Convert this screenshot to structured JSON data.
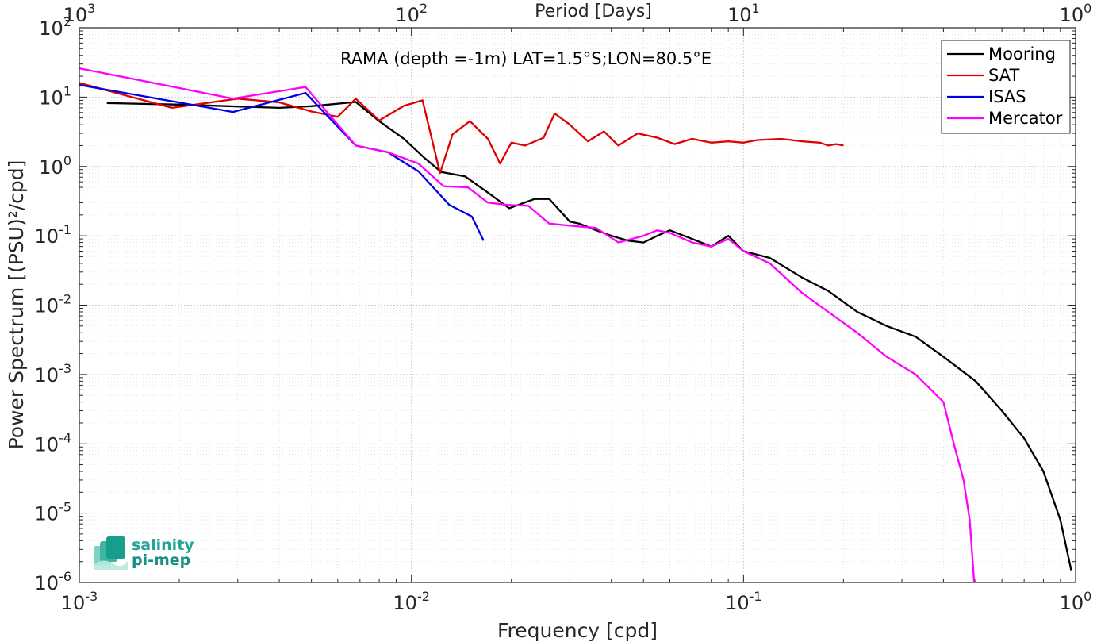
{
  "chart_data": {
    "type": "line",
    "title": "RAMA (depth =-1m) LAT=1.5°S;LON=80.5°E",
    "xlabel": "Frequency [cpd]",
    "ylabel": "Power Spectrum [(PSU)²/cpd]",
    "x2label": "Period [Days]",
    "xscale": "log",
    "yscale": "log",
    "xlim": [
      0.001,
      1
    ],
    "ylim": [
      1e-06,
      100
    ],
    "grid": true,
    "legend_position": "top-right",
    "x_ticks": [
      {
        "base": "10",
        "exp": "-3"
      },
      {
        "base": "10",
        "exp": "-2"
      },
      {
        "base": "10",
        "exp": "-1"
      },
      {
        "base": "10",
        "exp": "0"
      }
    ],
    "x2_ticks": [
      {
        "base": "10",
        "exp": "3"
      },
      {
        "base": "10",
        "exp": "2"
      },
      {
        "base": "10",
        "exp": "1"
      },
      {
        "base": "10",
        "exp": "0"
      }
    ],
    "y_ticks": [
      {
        "base": "10",
        "exp": "2"
      },
      {
        "base": "10",
        "exp": "1"
      },
      {
        "base": "10",
        "exp": "0"
      },
      {
        "base": "10",
        "exp": "-1"
      },
      {
        "base": "10",
        "exp": "-2"
      },
      {
        "base": "10",
        "exp": "-3"
      },
      {
        "base": "10",
        "exp": "-4"
      },
      {
        "base": "10",
        "exp": "-5"
      },
      {
        "base": "10",
        "exp": "-6"
      }
    ],
    "series": [
      {
        "name": "Mooring",
        "color": "#000000",
        "x": [
          0.00121,
          0.002,
          0.004,
          0.005,
          0.0068,
          0.008,
          0.0095,
          0.011,
          0.0123,
          0.0145,
          0.017,
          0.0197,
          0.0235,
          0.026,
          0.03,
          0.032,
          0.036,
          0.04,
          0.045,
          0.05,
          0.055,
          0.06,
          0.07,
          0.08,
          0.09,
          0.1,
          0.12,
          0.15,
          0.18,
          0.22,
          0.27,
          0.33,
          0.4,
          0.5,
          0.6,
          0.7,
          0.8,
          0.9,
          0.97
        ],
        "y": [
          8.2,
          7.8,
          7.0,
          7.4,
          8.5,
          4.5,
          2.5,
          1.3,
          0.83,
          0.72,
          0.42,
          0.25,
          0.34,
          0.34,
          0.16,
          0.15,
          0.12,
          0.1,
          0.085,
          0.08,
          0.1,
          0.12,
          0.09,
          0.07,
          0.1,
          0.06,
          0.048,
          0.025,
          0.016,
          0.008,
          0.005,
          0.0035,
          0.0018,
          0.0008,
          0.0003,
          0.00012,
          4e-05,
          8e-06,
          1.5e-06
        ]
      },
      {
        "name": "SAT",
        "color": "#e00000",
        "x": [
          0.001,
          0.0019,
          0.003,
          0.004,
          0.005,
          0.006,
          0.0068,
          0.008,
          0.0095,
          0.0108,
          0.0122,
          0.0133,
          0.015,
          0.017,
          0.0185,
          0.02,
          0.022,
          0.025,
          0.027,
          0.03,
          0.034,
          0.038,
          0.042,
          0.048,
          0.055,
          0.062,
          0.07,
          0.08,
          0.09,
          0.1,
          0.11,
          0.13,
          0.15,
          0.17,
          0.18,
          0.19,
          0.2
        ],
        "y": [
          16,
          7,
          9.5,
          8.4,
          6.2,
          5.2,
          9.5,
          4.6,
          7.5,
          9.0,
          0.8,
          2.9,
          4.5,
          2.5,
          1.1,
          2.2,
          2.0,
          2.6,
          5.8,
          4.0,
          2.3,
          3.2,
          2.0,
          3.0,
          2.6,
          2.1,
          2.5,
          2.2,
          2.3,
          2.2,
          2.4,
          2.5,
          2.3,
          2.2,
          2.0,
          2.1,
          2.0
        ]
      },
      {
        "name": "ISAS",
        "color": "#0000e6",
        "x": [
          0.001,
          0.0029,
          0.0048,
          0.0068,
          0.0085,
          0.0105,
          0.013,
          0.0152,
          0.0165
        ],
        "y": [
          15,
          6.1,
          11.5,
          2.0,
          1.6,
          0.85,
          0.28,
          0.19,
          0.085
        ]
      },
      {
        "name": "Mercator",
        "color": "#ff00ff",
        "x": [
          0.001,
          0.0029,
          0.0048,
          0.0068,
          0.0085,
          0.0105,
          0.0125,
          0.0148,
          0.017,
          0.0195,
          0.0225,
          0.026,
          0.03,
          0.036,
          0.042,
          0.05,
          0.055,
          0.06,
          0.07,
          0.08,
          0.09,
          0.1,
          0.12,
          0.15,
          0.18,
          0.22,
          0.27,
          0.33,
          0.4,
          0.43,
          0.46,
          0.48,
          0.49,
          0.495
        ],
        "y": [
          26,
          9.5,
          14,
          2.0,
          1.6,
          1.1,
          0.52,
          0.5,
          0.3,
          0.28,
          0.27,
          0.15,
          0.14,
          0.13,
          0.08,
          0.1,
          0.12,
          0.11,
          0.08,
          0.07,
          0.09,
          0.06,
          0.04,
          0.015,
          0.008,
          0.004,
          0.0018,
          0.001,
          0.0004,
          0.0001,
          3e-05,
          8e-06,
          2e-06,
          1e-06
        ]
      }
    ]
  },
  "logo": {
    "line1": "salinity",
    "line2": "pi-mep"
  }
}
